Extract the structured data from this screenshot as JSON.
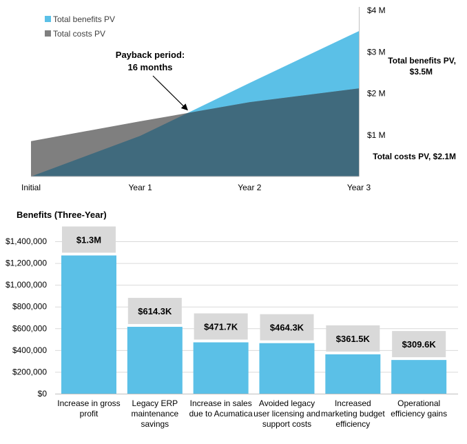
{
  "chart_data": [
    {
      "type": "area",
      "categories": [
        "Initial",
        "Year 1",
        "Year 2",
        "Year 3"
      ],
      "ylim": [
        0,
        4000000
      ],
      "y_ticks": [
        "$1 M",
        "$2 M",
        "$3 M",
        "$4 M"
      ],
      "y_tick_values": [
        1000000,
        2000000,
        3000000,
        4000000
      ],
      "y_axis_position": "right",
      "grid": false,
      "legend_position": "top-left",
      "series": [
        {
          "name": "Total benefits PV",
          "color": "#5BC0E7",
          "values": [
            0,
            980000,
            2250000,
            3500000
          ]
        },
        {
          "name": "Total costs PV",
          "color": "#7F7F7F",
          "overlap_color": "#406A7D",
          "values": [
            850000,
            1330000,
            1790000,
            2120000
          ]
        }
      ],
      "annotations": {
        "payback_line1": "Payback period:",
        "payback_line2": "16 months",
        "payback_x": 1.45,
        "benefits_label_line1": "Total benefits PV,",
        "benefits_label_line2": "$3.5M",
        "costs_label": "Total costs PV, $2.1M"
      }
    },
    {
      "type": "bar",
      "title": "Benefits (Three-Year)",
      "color": "#5BC0E7",
      "label_box_color": "#D9D9D9",
      "ylim": [
        0,
        1400000
      ],
      "y_ticks": [
        "$0",
        "$200,000",
        "$400,000",
        "$600,000",
        "$800,000",
        "$1,000,000",
        "$1,200,000",
        "$1,400,000"
      ],
      "y_tick_values": [
        0,
        200000,
        400000,
        600000,
        800000,
        1000000,
        1200000,
        1400000
      ],
      "grid": true,
      "categories": [
        [
          "Increase in gross",
          "profit"
        ],
        [
          "Legacy ERP",
          "maintenance",
          "savings"
        ],
        [
          "Increase in sales",
          "due to Acumatica"
        ],
        [
          "Avoided legacy",
          "user licensing and",
          "support costs"
        ],
        [
          "Increased",
          "marketing budget",
          "efficiency"
        ],
        [
          "Operational",
          "efficiency gains"
        ]
      ],
      "values": [
        1270000,
        614300,
        471700,
        464300,
        361500,
        309600
      ],
      "data_labels": [
        "$1.3M",
        "$614.3K",
        "$471.7K",
        "$464.3K",
        "$361.5K",
        "$309.6K"
      ]
    }
  ]
}
